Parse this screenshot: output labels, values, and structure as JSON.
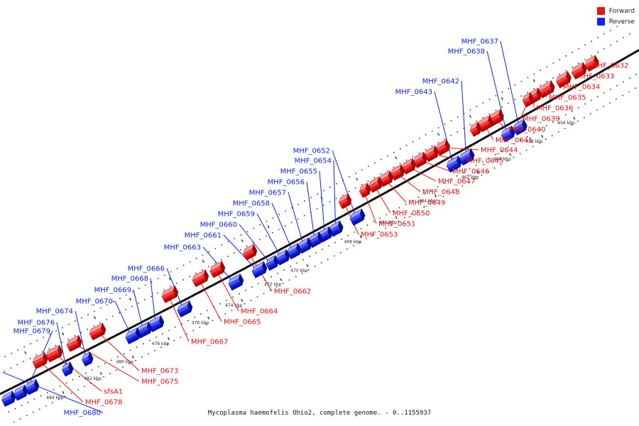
{
  "colors": {
    "forward": "#ee1111",
    "reverse": "#1122ee",
    "backbone": "#111111"
  },
  "legend": [
    {
      "label": "Forward",
      "color": "#ee1111"
    },
    {
      "label": "Reverse",
      "color": "#1122ee"
    }
  ],
  "caption": "Mycoplasma haemofelis Ohio2, complete genome. - 0..1155937",
  "ticks": [
    "456 kbp",
    "458 kbp",
    "460 kbp",
    "462 kbp",
    "464 kbp",
    "466 kbp",
    "468 kbp",
    "470 kbp",
    "472 kbp",
    "474 kbp",
    "476 kbp",
    "478 kbp",
    "480 kbp",
    "482 kbp",
    "484 kbp"
  ],
  "reverse_genes": [
    "MHF_0637",
    "MHF_0638",
    "MHF_0642",
    "MHF_0643",
    "MHF_0652",
    "MHF_0654",
    "MHF_0655",
    "MHF_0656",
    "MHF_0657",
    "MHF_0658",
    "MHF_0659",
    "MHF_0660",
    "MHF_0661",
    "MHF_0663",
    "MHF_0666",
    "MHF_0668",
    "MHF_0669",
    "MHF_0670",
    "MHF_0674",
    "MHF_0676",
    "MHF_0679",
    "MHF_0680"
  ],
  "forward_genes": [
    "MHF_0632",
    "MHF_0633",
    "MHF_0634",
    "MHF_0635",
    "MHF_0636",
    "MHF_0639",
    "MHF_0640",
    "MHF_0641",
    "MHF_0644",
    "MHF_0645",
    "MHF_0646",
    "MHF_0647",
    "MHF_0648",
    "MHF_0649",
    "MHF_0650",
    "MHF_0651",
    "MHF_0653",
    "MHF_0662",
    "MHF_0664",
    "MHF_0665",
    "MHF_0667",
    "MHF_0673",
    "MHF_0675",
    "sfsA1",
    "MHF_0678"
  ]
}
